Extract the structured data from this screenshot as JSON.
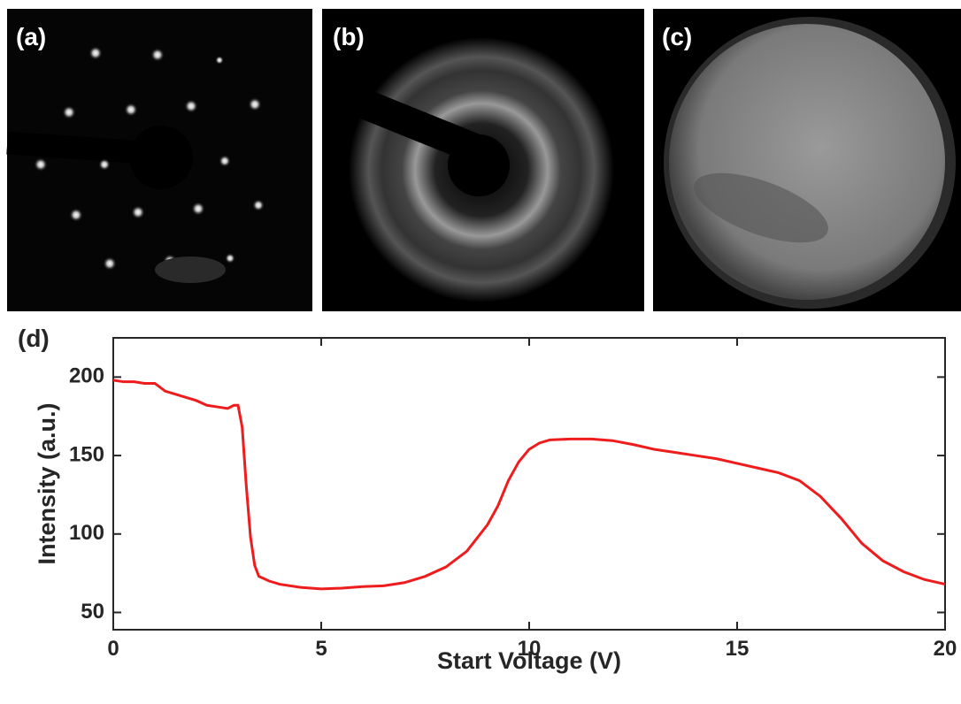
{
  "panels": [
    "(a)",
    "(b)",
    "(c)"
  ],
  "chart_data": {
    "type": "line",
    "label": "(d)",
    "x_label": "Start Voltage (V)",
    "y_label": "Intensity (a.u.)",
    "x": [
      0,
      0.25,
      0.5,
      0.75,
      1.0,
      1.25,
      1.5,
      2.0,
      2.25,
      2.5,
      2.75,
      2.9,
      3.0,
      3.1,
      3.2,
      3.3,
      3.4,
      3.5,
      3.75,
      4.0,
      4.5,
      5.0,
      5.5,
      6.0,
      6.5,
      7.0,
      7.5,
      8.0,
      8.5,
      9.0,
      9.25,
      9.5,
      9.75,
      10.0,
      10.25,
      10.5,
      11.0,
      11.5,
      12.0,
      12.5,
      13.0,
      13.5,
      14.0,
      14.5,
      15.0,
      15.5,
      16.0,
      16.5,
      17.0,
      17.5,
      18.0,
      18.5,
      19.0,
      19.5,
      20.0
    ],
    "series": [
      {
        "color": "#ee1c1c",
        "values": [
          198,
          197,
          197,
          196,
          196,
          191,
          189,
          185,
          182,
          181,
          180,
          182,
          182,
          168,
          130,
          98,
          80,
          73,
          70,
          68,
          66,
          65,
          65.5,
          66.5,
          67,
          69,
          73,
          79,
          89,
          106,
          118,
          134,
          146,
          154,
          158,
          160,
          160.5,
          160.5,
          159.5,
          157,
          154,
          152,
          150,
          148,
          145,
          142,
          139,
          134,
          124,
          110,
          94,
          83,
          76,
          71,
          68
        ]
      }
    ],
    "xlim": [
      0,
      20
    ],
    "xticks": [
      0,
      5,
      10,
      15,
      20
    ],
    "ylim": [
      39,
      225
    ],
    "yticks": [
      50,
      100,
      150,
      200
    ]
  }
}
